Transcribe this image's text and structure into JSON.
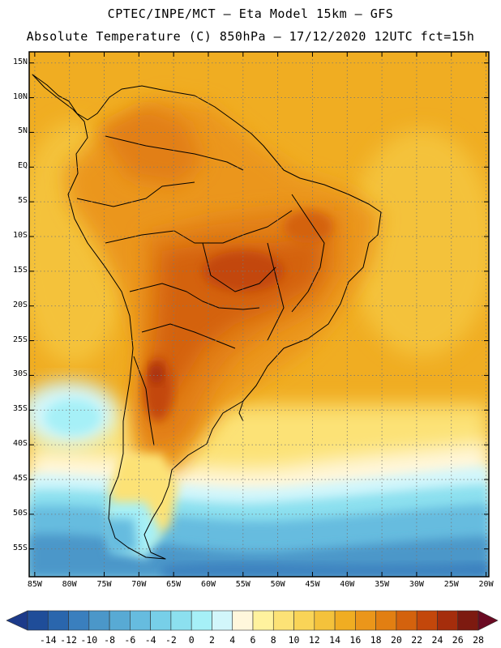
{
  "header": {
    "line1": "CPTEC/INPE/MCT –  Eta Model 15km – GFS",
    "line2": "Absolute Temperature (C) 850hPa – 17/12/2020 12UTC fct=15h"
  },
  "map": {
    "lat_ticks": [
      {
        "label": "15N",
        "lat": 15
      },
      {
        "label": "10N",
        "lat": 10
      },
      {
        "label": "5N",
        "lat": 5
      },
      {
        "label": "EQ",
        "lat": 0
      },
      {
        "label": "5S",
        "lat": -5
      },
      {
        "label": "10S",
        "lat": -10
      },
      {
        "label": "15S",
        "lat": -15
      },
      {
        "label": "20S",
        "lat": -20
      },
      {
        "label": "25S",
        "lat": -25
      },
      {
        "label": "30S",
        "lat": -30
      },
      {
        "label": "35S",
        "lat": -35
      },
      {
        "label": "40S",
        "lat": -40
      },
      {
        "label": "45S",
        "lat": -45
      },
      {
        "label": "50S",
        "lat": -50
      },
      {
        "label": "55S",
        "lat": -55
      }
    ],
    "lon_ticks": [
      {
        "label": "85W",
        "lon": -85
      },
      {
        "label": "80W",
        "lon": -80
      },
      {
        "label": "75W",
        "lon": -75
      },
      {
        "label": "70W",
        "lon": -70
      },
      {
        "label": "65W",
        "lon": -65
      },
      {
        "label": "60W",
        "lon": -60
      },
      {
        "label": "55W",
        "lon": -55
      },
      {
        "label": "50W",
        "lon": -50
      },
      {
        "label": "45W",
        "lon": -45
      },
      {
        "label": "40W",
        "lon": -40
      },
      {
        "label": "35W",
        "lon": -35
      },
      {
        "label": "30W",
        "lon": -30
      },
      {
        "label": "25W",
        "lon": -25
      },
      {
        "label": "20W",
        "lon": -20
      }
    ]
  },
  "colorbar": {
    "labels": [
      "-14",
      "-12",
      "-10",
      "-8",
      "-6",
      "-4",
      "-2",
      "0",
      "2",
      "4",
      "6",
      "8",
      "10",
      "12",
      "14",
      "16",
      "18",
      "20",
      "22",
      "24",
      "26",
      "28"
    ],
    "below_color": "#1c3a8a",
    "above_color": "#6a0a22",
    "colors": [
      "#1f4d99",
      "#2a66ad",
      "#3a7fbe",
      "#4b97c9",
      "#58aad4",
      "#66bcdf",
      "#77cfe8",
      "#8ce0ef",
      "#a6f0f7",
      "#d2f6fb",
      "#fff7dc",
      "#fff29e",
      "#fce276",
      "#f9d457",
      "#f4c23b",
      "#f0ad22",
      "#eb961a",
      "#e27f12",
      "#d4620d",
      "#c3470b",
      "#a52d0c",
      "#7d1a10"
    ]
  }
}
